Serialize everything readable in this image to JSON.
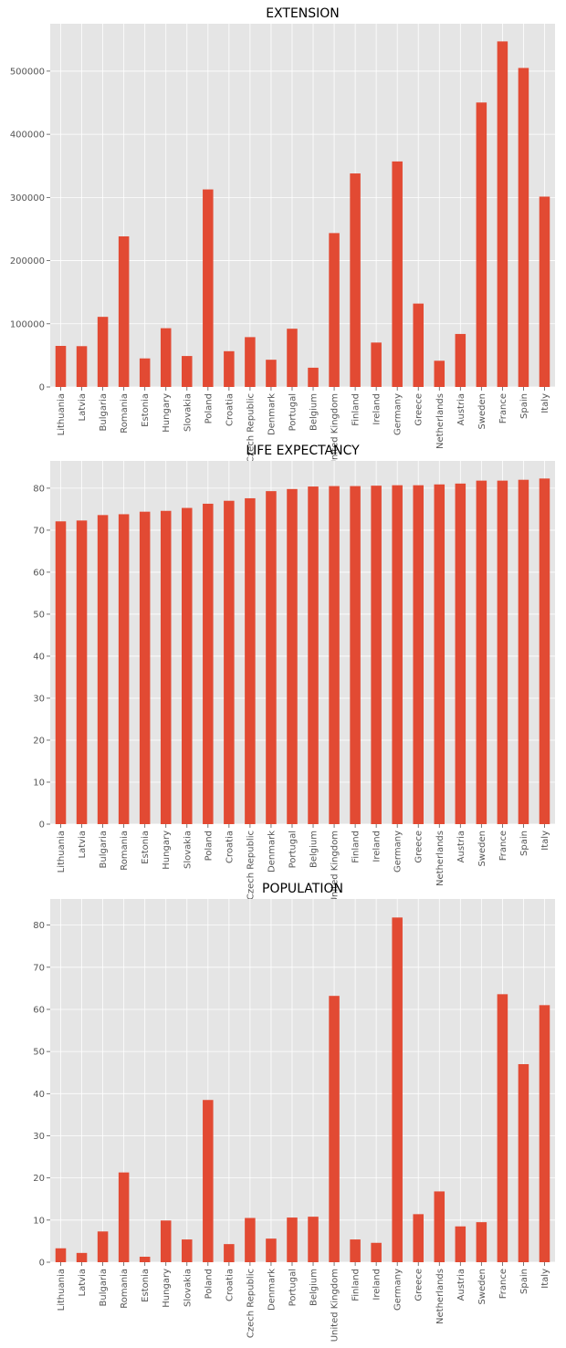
{
  "chart_data": [
    {
      "type": "bar",
      "title": "EXTENSION",
      "categories": [
        "Lithuania",
        "Latvia",
        "Bulgaria",
        "Romania",
        "Estonia",
        "Hungary",
        "Slovakia",
        "Poland",
        "Croatia",
        "Czech Republic",
        "Denmark",
        "Portugal",
        "Belgium",
        "United Kingdom",
        "Finland",
        "Ireland",
        "Germany",
        "Greece",
        "Netherlands",
        "Austria",
        "Sweden",
        "France",
        "Spain",
        "Italy"
      ],
      "values": [
        65000,
        64600,
        111000,
        238400,
        45200,
        93000,
        49000,
        312700,
        56600,
        78900,
        43100,
        92200,
        30500,
        243600,
        338000,
        70300,
        357000,
        132000,
        41500,
        83900,
        450300,
        547000,
        505000,
        301300
      ],
      "yticks": [
        "0",
        "100000",
        "200000",
        "300000",
        "400000",
        "500000"
      ],
      "ytick_values": [
        0,
        100000,
        200000,
        300000,
        400000,
        500000
      ],
      "ylim": [
        0,
        575000
      ],
      "grid": true,
      "color": "#e24a33"
    },
    {
      "type": "bar",
      "title": "LIFE EXPECTANCY",
      "categories": [
        "Lithuania",
        "Latvia",
        "Bulgaria",
        "Romania",
        "Estonia",
        "Hungary",
        "Slovakia",
        "Poland",
        "Croatia",
        "Czech Republic",
        "Denmark",
        "Portugal",
        "Belgium",
        "United Kingdom",
        "Finland",
        "Ireland",
        "Germany",
        "Greece",
        "Netherlands",
        "Austria",
        "Sweden",
        "France",
        "Spain",
        "Italy"
      ],
      "values": [
        72.1,
        72.3,
        73.6,
        73.8,
        74.4,
        74.6,
        75.3,
        76.3,
        77.0,
        77.6,
        79.3,
        79.8,
        80.4,
        80.5,
        80.5,
        80.6,
        80.7,
        80.7,
        80.9,
        81.1,
        81.8,
        81.8,
        82.0,
        82.3
      ],
      "yticks": [
        "0",
        "10",
        "20",
        "30",
        "40",
        "50",
        "60",
        "70",
        "80"
      ],
      "ytick_values": [
        0,
        10,
        20,
        30,
        40,
        50,
        60,
        70,
        80
      ],
      "ylim": [
        0,
        86.5
      ],
      "grid": true,
      "color": "#e24a33"
    },
    {
      "type": "bar",
      "title": "POPULATION",
      "categories": [
        "Lithuania",
        "Latvia",
        "Bulgaria",
        "Romania",
        "Estonia",
        "Hungary",
        "Slovakia",
        "Poland",
        "Croatia",
        "Czech Republic",
        "Denmark",
        "Portugal",
        "Belgium",
        "United Kingdom",
        "Finland",
        "Ireland",
        "Germany",
        "Greece",
        "Netherlands",
        "Austria",
        "Sweden",
        "France",
        "Spain",
        "Italy"
      ],
      "values": [
        3.3,
        2.2,
        7.3,
        21.3,
        1.3,
        9.9,
        5.4,
        38.5,
        4.3,
        10.5,
        5.6,
        10.6,
        10.8,
        63.2,
        5.4,
        4.6,
        81.8,
        11.4,
        16.8,
        8.5,
        9.5,
        63.6,
        47.0,
        61.0
      ],
      "yticks": [
        "0",
        "10",
        "20",
        "30",
        "40",
        "50",
        "60",
        "70",
        "80"
      ],
      "ytick_values": [
        0,
        10,
        20,
        30,
        40,
        50,
        60,
        70,
        80
      ],
      "ylim": [
        0,
        86.2
      ],
      "grid": true,
      "color": "#e24a33"
    }
  ]
}
